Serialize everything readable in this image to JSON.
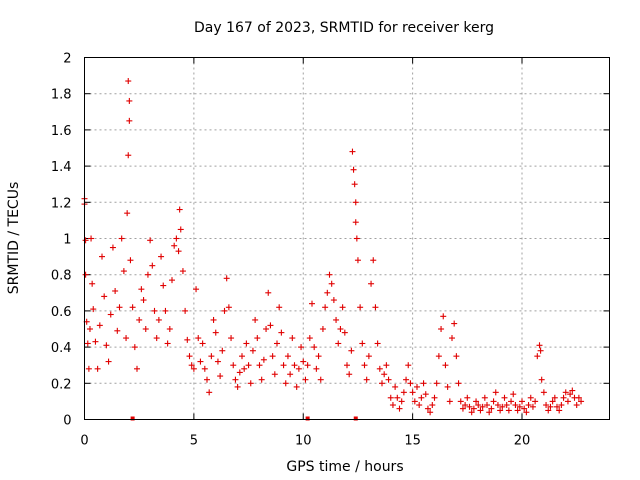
{
  "chart_data": {
    "type": "scatter",
    "title": "Day 167 of 2023, SRMTID for receiver kerg",
    "xlabel": "GPS time / hours",
    "ylabel": "SRMTID / TECUs",
    "xlim": [
      0,
      24
    ],
    "ylim": [
      0,
      2
    ],
    "xticks": [
      0,
      5,
      10,
      15,
      20
    ],
    "xtick_labels": [
      "0",
      "5",
      "10",
      "15",
      "20"
    ],
    "yticks": [
      0,
      0.2,
      0.4,
      0.6,
      0.8,
      1,
      1.2,
      1.4,
      1.6,
      1.8,
      2
    ],
    "ytick_labels": [
      "0",
      "0.2",
      "0.4",
      "0.6",
      "0.8",
      "1",
      "1.2",
      "1.4",
      "1.6",
      "1.8",
      "2"
    ],
    "grid": true,
    "marker_color": "#e00000",
    "series": [
      {
        "name": "SRMTID",
        "marker": "+",
        "points": [
          [
            0.0,
            1.19
          ],
          [
            0.0,
            1.22
          ],
          [
            0.05,
            0.99
          ],
          [
            0.05,
            0.8
          ],
          [
            0.1,
            0.54
          ],
          [
            0.15,
            0.42
          ],
          [
            0.2,
            0.28
          ],
          [
            0.25,
            0.5
          ],
          [
            0.3,
            1.0
          ],
          [
            0.35,
            0.75
          ],
          [
            0.4,
            0.61
          ],
          [
            0.5,
            0.43
          ],
          [
            0.6,
            0.28
          ],
          [
            0.7,
            0.52
          ],
          [
            0.8,
            0.9
          ],
          [
            0.9,
            0.68
          ],
          [
            1.0,
            0.41
          ],
          [
            1.1,
            0.32
          ],
          [
            1.2,
            0.58
          ],
          [
            1.3,
            0.95
          ],
          [
            1.4,
            0.71
          ],
          [
            1.5,
            0.49
          ],
          [
            1.6,
            0.62
          ],
          [
            1.7,
            1.0
          ],
          [
            1.8,
            0.82
          ],
          [
            1.9,
            0.45
          ],
          [
            2.0,
            1.87
          ],
          [
            2.05,
            1.76
          ],
          [
            2.05,
            1.65
          ],
          [
            2.0,
            1.46
          ],
          [
            1.95,
            1.14
          ],
          [
            2.1,
            0.88
          ],
          [
            2.2,
            0.62
          ],
          [
            2.3,
            0.4
          ],
          [
            2.4,
            0.28
          ],
          [
            2.5,
            0.55
          ],
          [
            2.6,
            0.72
          ],
          [
            2.7,
            0.66
          ],
          [
            2.8,
            0.5
          ],
          [
            2.9,
            0.8
          ],
          [
            3.0,
            0.99
          ],
          [
            3.1,
            0.85
          ],
          [
            3.2,
            0.6
          ],
          [
            3.3,
            0.45
          ],
          [
            3.4,
            0.55
          ],
          [
            3.5,
            0.9
          ],
          [
            3.6,
            0.74
          ],
          [
            3.7,
            0.6
          ],
          [
            3.8,
            0.42
          ],
          [
            3.9,
            0.5
          ],
          [
            4.0,
            0.77
          ],
          [
            4.1,
            0.96
          ],
          [
            4.2,
            1.0
          ],
          [
            4.3,
            0.93
          ],
          [
            4.35,
            1.16
          ],
          [
            4.4,
            1.05
          ],
          [
            4.5,
            0.82
          ],
          [
            4.6,
            0.6
          ],
          [
            4.7,
            0.44
          ],
          [
            4.8,
            0.35
          ],
          [
            4.9,
            0.3
          ],
          [
            5.0,
            0.28
          ],
          [
            5.1,
            0.72
          ],
          [
            5.2,
            0.45
          ],
          [
            5.3,
            0.32
          ],
          [
            5.4,
            0.42
          ],
          [
            5.5,
            0.28
          ],
          [
            5.6,
            0.22
          ],
          [
            5.7,
            0.15
          ],
          [
            5.8,
            0.35
          ],
          [
            5.9,
            0.55
          ],
          [
            6.0,
            0.48
          ],
          [
            6.1,
            0.32
          ],
          [
            6.2,
            0.24
          ],
          [
            6.3,
            0.38
          ],
          [
            6.4,
            0.6
          ],
          [
            6.5,
            0.78
          ],
          [
            6.6,
            0.62
          ],
          [
            6.7,
            0.45
          ],
          [
            6.8,
            0.3
          ],
          [
            6.9,
            0.22
          ],
          [
            7.0,
            0.18
          ],
          [
            7.1,
            0.26
          ],
          [
            7.2,
            0.35
          ],
          [
            7.3,
            0.28
          ],
          [
            7.4,
            0.42
          ],
          [
            7.5,
            0.3
          ],
          [
            7.6,
            0.2
          ],
          [
            7.7,
            0.38
          ],
          [
            7.8,
            0.55
          ],
          [
            7.9,
            0.45
          ],
          [
            8.0,
            0.3
          ],
          [
            8.1,
            0.22
          ],
          [
            8.2,
            0.33
          ],
          [
            8.3,
            0.5
          ],
          [
            8.4,
            0.7
          ],
          [
            8.5,
            0.52
          ],
          [
            8.6,
            0.35
          ],
          [
            8.7,
            0.25
          ],
          [
            8.8,
            0.42
          ],
          [
            8.9,
            0.62
          ],
          [
            9.0,
            0.48
          ],
          [
            9.1,
            0.3
          ],
          [
            9.2,
            0.2
          ],
          [
            9.3,
            0.35
          ],
          [
            9.4,
            0.25
          ],
          [
            9.5,
            0.45
          ],
          [
            9.6,
            0.3
          ],
          [
            9.7,
            0.18
          ],
          [
            9.8,
            0.28
          ],
          [
            9.9,
            0.4
          ],
          [
            10.0,
            0.32
          ],
          [
            10.1,
            0.22
          ],
          [
            10.2,
            0.3
          ],
          [
            10.3,
            0.45
          ],
          [
            10.4,
            0.64
          ],
          [
            10.5,
            0.4
          ],
          [
            10.6,
            0.28
          ],
          [
            10.7,
            0.35
          ],
          [
            10.8,
            0.22
          ],
          [
            10.9,
            0.5
          ],
          [
            11.0,
            0.62
          ],
          [
            11.1,
            0.7
          ],
          [
            11.2,
            0.8
          ],
          [
            11.3,
            0.75
          ],
          [
            11.4,
            0.66
          ],
          [
            11.5,
            0.55
          ],
          [
            11.6,
            0.42
          ],
          [
            11.7,
            0.5
          ],
          [
            11.8,
            0.62
          ],
          [
            11.9,
            0.48
          ],
          [
            12.0,
            0.3
          ],
          [
            12.1,
            0.25
          ],
          [
            12.2,
            0.38
          ],
          [
            12.25,
            1.48
          ],
          [
            12.3,
            1.38
          ],
          [
            12.35,
            1.3
          ],
          [
            12.4,
            1.2
          ],
          [
            12.4,
            1.09
          ],
          [
            12.45,
            1.0
          ],
          [
            12.5,
            0.88
          ],
          [
            12.6,
            0.62
          ],
          [
            12.7,
            0.42
          ],
          [
            12.8,
            0.3
          ],
          [
            12.9,
            0.22
          ],
          [
            13.0,
            0.35
          ],
          [
            13.1,
            0.75
          ],
          [
            13.2,
            0.88
          ],
          [
            13.3,
            0.62
          ],
          [
            13.4,
            0.42
          ],
          [
            13.5,
            0.28
          ],
          [
            13.6,
            0.2
          ],
          [
            13.7,
            0.25
          ],
          [
            13.8,
            0.3
          ],
          [
            13.9,
            0.22
          ],
          [
            14.0,
            0.12
          ],
          [
            14.1,
            0.08
          ],
          [
            14.2,
            0.18
          ],
          [
            14.3,
            0.12
          ],
          [
            14.4,
            0.06
          ],
          [
            14.5,
            0.1
          ],
          [
            14.6,
            0.15
          ],
          [
            14.7,
            0.22
          ],
          [
            14.8,
            0.3
          ],
          [
            14.9,
            0.2
          ],
          [
            15.0,
            0.15
          ],
          [
            15.1,
            0.1
          ],
          [
            15.2,
            0.18
          ],
          [
            15.3,
            0.08
          ],
          [
            15.4,
            0.12
          ],
          [
            15.5,
            0.2
          ],
          [
            15.6,
            0.14
          ],
          [
            15.7,
            0.06
          ],
          [
            15.8,
            0.04
          ],
          [
            15.9,
            0.08
          ],
          [
            16.0,
            0.12
          ],
          [
            16.1,
            0.2
          ],
          [
            16.2,
            0.35
          ],
          [
            16.3,
            0.5
          ],
          [
            16.4,
            0.57
          ],
          [
            16.5,
            0.3
          ],
          [
            16.6,
            0.18
          ],
          [
            16.7,
            0.1
          ],
          [
            16.8,
            0.45
          ],
          [
            16.9,
            0.53
          ],
          [
            17.0,
            0.35
          ],
          [
            17.1,
            0.2
          ],
          [
            17.2,
            0.1
          ],
          [
            17.3,
            0.06
          ],
          [
            17.4,
            0.08
          ],
          [
            17.5,
            0.12
          ],
          [
            17.6,
            0.07
          ],
          [
            17.7,
            0.04
          ],
          [
            17.8,
            0.06
          ],
          [
            17.9,
            0.1
          ],
          [
            18.0,
            0.08
          ],
          [
            18.1,
            0.05
          ],
          [
            18.2,
            0.07
          ],
          [
            18.3,
            0.12
          ],
          [
            18.4,
            0.08
          ],
          [
            18.5,
            0.04
          ],
          [
            18.6,
            0.06
          ],
          [
            18.7,
            0.1
          ],
          [
            18.8,
            0.15
          ],
          [
            18.9,
            0.08
          ],
          [
            19.0,
            0.05
          ],
          [
            19.1,
            0.07
          ],
          [
            19.2,
            0.12
          ],
          [
            19.3,
            0.08
          ],
          [
            19.4,
            0.05
          ],
          [
            19.5,
            0.1
          ],
          [
            19.6,
            0.14
          ],
          [
            19.7,
            0.08
          ],
          [
            19.8,
            0.05
          ],
          [
            19.9,
            0.07
          ],
          [
            20.0,
            0.1
          ],
          [
            20.1,
            0.06
          ],
          [
            20.2,
            0.04
          ],
          [
            20.3,
            0.08
          ],
          [
            20.4,
            0.12
          ],
          [
            20.5,
            0.07
          ],
          [
            20.6,
            0.1
          ],
          [
            20.7,
            0.35
          ],
          [
            20.8,
            0.41
          ],
          [
            20.85,
            0.38
          ],
          [
            20.9,
            0.22
          ],
          [
            21.0,
            0.15
          ],
          [
            21.1,
            0.08
          ],
          [
            21.2,
            0.05
          ],
          [
            21.3,
            0.07
          ],
          [
            21.4,
            0.1
          ],
          [
            21.5,
            0.12
          ],
          [
            21.6,
            0.07
          ],
          [
            21.7,
            0.05
          ],
          [
            21.8,
            0.08
          ],
          [
            21.9,
            0.12
          ],
          [
            22.0,
            0.15
          ],
          [
            22.1,
            0.1
          ],
          [
            22.2,
            0.14
          ],
          [
            22.3,
            0.16
          ],
          [
            22.4,
            0.12
          ],
          [
            22.5,
            0.08
          ],
          [
            22.6,
            0.12
          ],
          [
            22.7,
            0.1
          ]
        ]
      }
    ],
    "axis_markers_x": [
      2.2,
      10.2,
      12.4
    ]
  }
}
